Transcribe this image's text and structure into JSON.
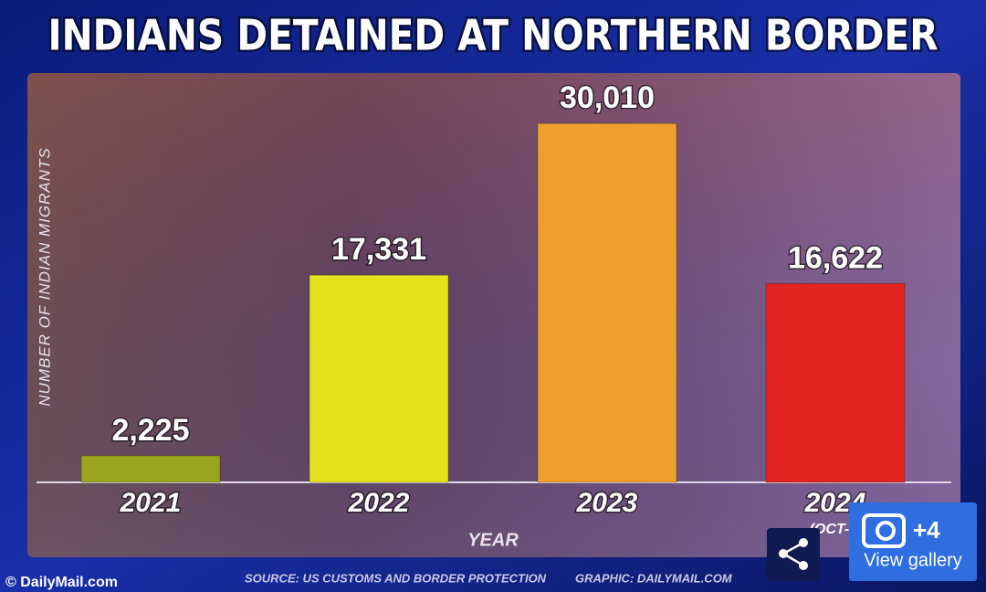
{
  "chart_data": {
    "type": "bar",
    "title": "INDIANS DETAINED AT NORTHERN BORDER",
    "y_label": "NUMBER OF INDIAN MIGRANTS",
    "x_label": "YEAR",
    "categories": [
      "2021",
      "2022",
      "2023",
      "2024"
    ],
    "category_note": "(OCT-M",
    "values": [
      2225,
      17331,
      30010,
      16622
    ],
    "value_labels": [
      "2,225",
      "17,331",
      "30,010",
      "16,622"
    ],
    "colors": [
      "#9aa51e",
      "#e4e21c",
      "#eea02c",
      "#e42420"
    ],
    "ylim": [
      0,
      34000
    ],
    "source": "SOURCE: US CUSTOMS AND BORDER PROTECTION",
    "credit": "GRAPHIC: DAILYMAIL.COM"
  },
  "watermark": "© DailyMail.com",
  "gallery": {
    "count": "+4",
    "label": "View gallery"
  }
}
